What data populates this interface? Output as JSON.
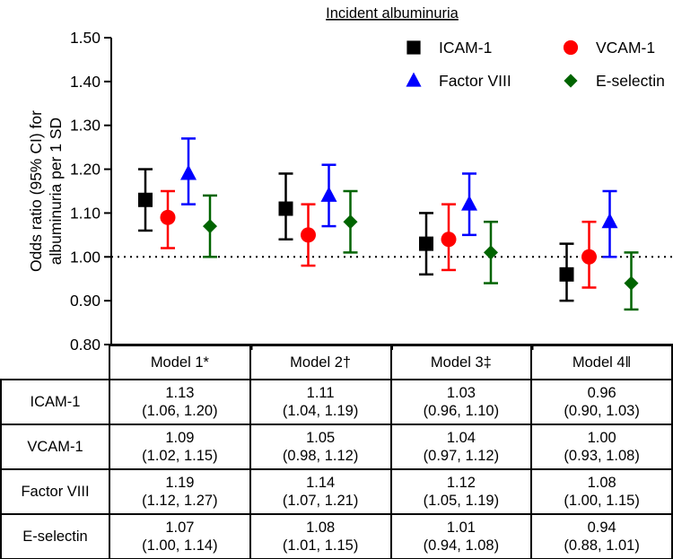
{
  "chart_data": {
    "type": "scatter",
    "title": "Incident albuminuria",
    "ylabel_line1": "Odds ratio (95% CI) for",
    "ylabel_line2": "albuminuria per 1 SD",
    "ylim": [
      0.8,
      1.5
    ],
    "yticks": [
      "0.80",
      "0.90",
      "1.00",
      "1.10",
      "1.20",
      "1.30",
      "1.40",
      "1.50"
    ],
    "reference_line": 1.0,
    "legend_position": "top-right",
    "categories": [
      "Model 1*",
      "Model 2†",
      "Model 3‡",
      "Model 4ǁ"
    ],
    "series": [
      {
        "name": "ICAM-1",
        "marker": "square",
        "color": "#000000",
        "or": [
          1.13,
          1.11,
          1.03,
          0.96
        ],
        "lo": [
          1.06,
          1.04,
          0.96,
          0.9
        ],
        "hi": [
          1.2,
          1.19,
          1.1,
          1.03
        ],
        "cells": [
          "1.13",
          "(1.06, 1.20)",
          "1.11",
          "(1.04, 1.19)",
          "1.03",
          "(0.96, 1.10)",
          "0.96",
          "(0.90, 1.03)"
        ]
      },
      {
        "name": "VCAM-1",
        "marker": "circle",
        "color": "#ff0000",
        "or": [
          1.09,
          1.05,
          1.04,
          1.0
        ],
        "lo": [
          1.02,
          0.98,
          0.97,
          0.93
        ],
        "hi": [
          1.15,
          1.12,
          1.12,
          1.08
        ],
        "cells": [
          "1.09",
          "(1.02, 1.15)",
          "1.05",
          "(0.98, 1.12)",
          "1.04",
          "(0.97, 1.12)",
          "1.00",
          "(0.93, 1.08)"
        ]
      },
      {
        "name": "Factor VIII",
        "marker": "triangle",
        "color": "#0000ff",
        "or": [
          1.19,
          1.14,
          1.12,
          1.08
        ],
        "lo": [
          1.12,
          1.07,
          1.05,
          1.0
        ],
        "hi": [
          1.27,
          1.21,
          1.19,
          1.15
        ],
        "cells": [
          "1.19",
          "(1.12, 1.27)",
          "1.14",
          "(1.07, 1.21)",
          "1.12",
          "(1.05, 1.19)",
          "1.08",
          "(1.00, 1.15)"
        ]
      },
      {
        "name": "E-selectin",
        "marker": "diamond",
        "color": "#006400",
        "or": [
          1.07,
          1.08,
          1.01,
          0.94
        ],
        "lo": [
          1.0,
          1.01,
          0.94,
          0.88
        ],
        "hi": [
          1.14,
          1.15,
          1.08,
          1.01
        ],
        "cells": [
          "1.07",
          "(1.00, 1.14)",
          "1.08",
          "(1.01, 1.15)",
          "1.01",
          "(0.94, 1.08)",
          "0.94",
          "(0.88, 1.01)"
        ]
      }
    ]
  }
}
